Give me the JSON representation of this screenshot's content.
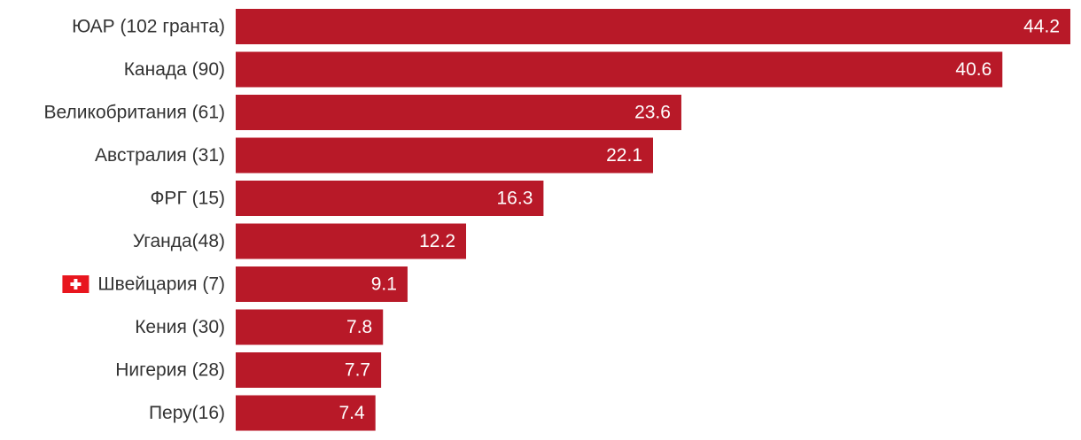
{
  "chart_data": {
    "type": "bar",
    "orientation": "horizontal",
    "title": "",
    "xlabel": "",
    "ylabel": "",
    "categories": [
      "ЮАР (102 гранта)",
      "Канада (90)",
      "Великобритания (61)",
      "Австралия (31)",
      "ФРГ (15)",
      "Уганда(48)",
      "Швейцария (7)",
      "Кения (30)",
      "Нигерия (28)",
      "Перу(16)"
    ],
    "values": [
      44.2,
      40.6,
      23.6,
      22.1,
      16.3,
      12.2,
      9.1,
      7.8,
      7.7,
      7.4
    ],
    "value_labels": [
      "44.2",
      "40.6",
      "23.6",
      "22.1",
      "16.3",
      "12.2",
      "9.1",
      "7.8",
      "7.7",
      "7.4"
    ],
    "xlim": [
      0,
      44.2
    ],
    "grid": false,
    "legend": "none",
    "bar_color": "#b81928",
    "highlight": {
      "category": "Швейцария (7)",
      "icon": "swiss-flag-icon",
      "flag_color": "#e8161e"
    },
    "label_color": "#333333",
    "value_label_color": "#ffffff"
  }
}
